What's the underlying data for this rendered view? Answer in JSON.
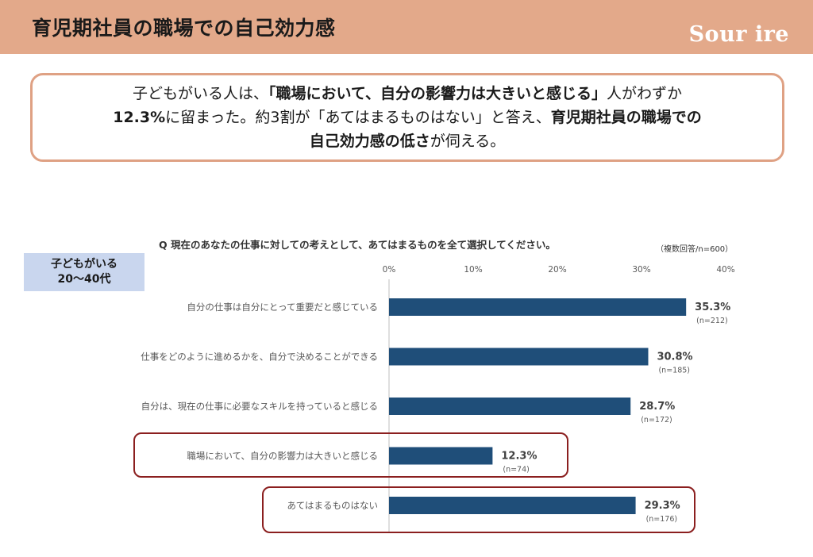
{
  "header": {
    "title": "育児期社員の職場での自己効力感",
    "brand": "Sour ire"
  },
  "summary": {
    "line1_prefix": "子どもがいる人は、",
    "line1_bold": "「職場において、自分の影響力は大きいと感じる」",
    "line1_suffix": "人がわずか",
    "line2_bold": "12.3%",
    "line2_text": "に留まった。約3割が「あてはまるものはない」と答え、",
    "line2_bold_end": "育児期社員の職場での",
    "line3_bold": "自己効力感の低さ",
    "line3_text": "が伺える。"
  },
  "question": {
    "text": "Q 現在のあなたの仕事に対しての考えとして、あてはまるものを全て選択してください。",
    "note": "（複数回答/n=600）"
  },
  "segment": {
    "line1": "子どもがいる",
    "line2": "20～40代"
  },
  "chart_data": {
    "type": "bar",
    "orientation": "horizontal",
    "categories": [
      "自分の仕事は自分にとって重要だと感じている",
      "仕事をどのように進めるかを、自分で決めることができる",
      "自分は、現在の仕事に必要なスキルを持っていると感じる",
      "職場において、自分の影響力は大きいと感じる",
      "あてはまるものはない"
    ],
    "values": [
      35.3,
      30.8,
      28.7,
      12.3,
      29.3
    ],
    "value_labels": [
      "35.3%",
      "30.8%",
      "28.7%",
      "12.3%",
      "29.3%"
    ],
    "n_labels": [
      "(n=212)",
      "(n=185)",
      "(n=172)",
      "(n=74)",
      "(n=176)"
    ],
    "xlim": [
      0,
      40
    ],
    "xticks": [
      0,
      10,
      20,
      30,
      40
    ],
    "xtick_labels": [
      "0%",
      "10%",
      "20%",
      "30%",
      "40%"
    ],
    "bar_color": "#1f4e79",
    "highlighted_categories": [
      3,
      4
    ],
    "highlight_color": "#8b1f1f"
  }
}
